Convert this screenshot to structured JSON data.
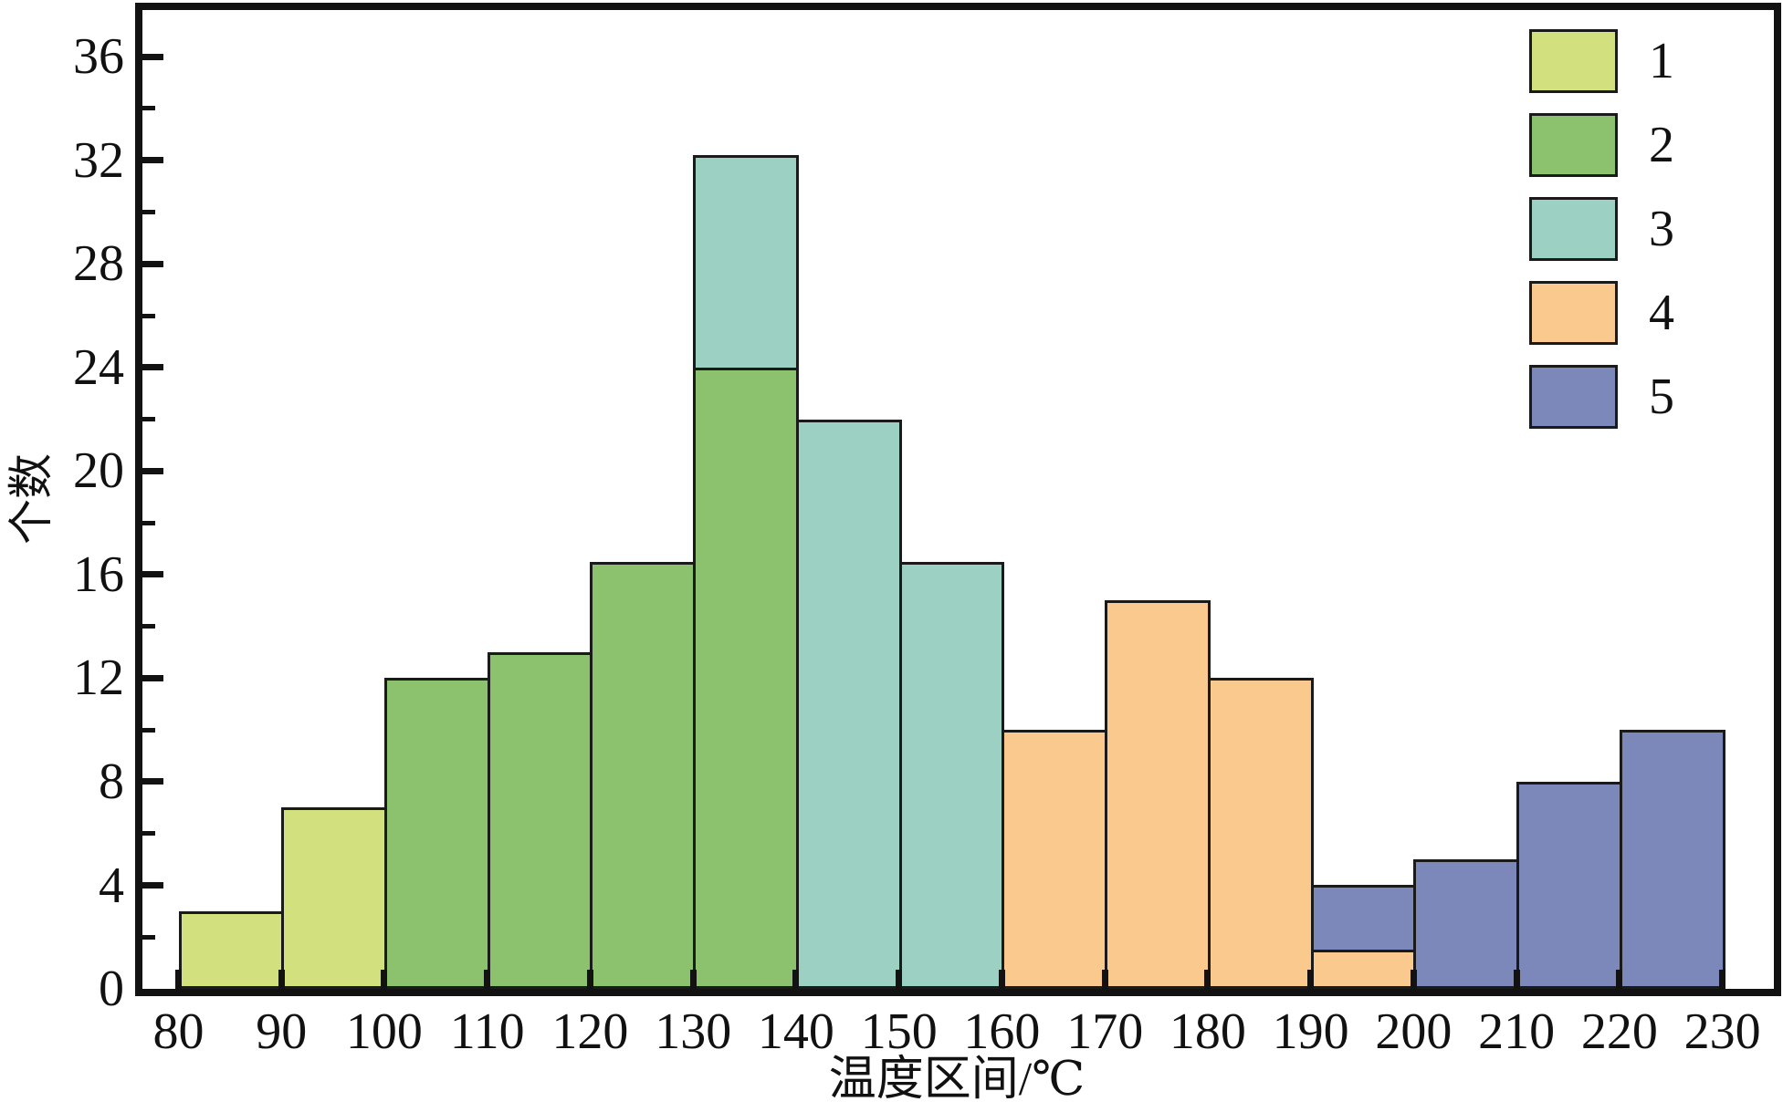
{
  "chart_data": {
    "type": "bar",
    "subtype": "stacked-histogram",
    "title": "",
    "xlabel": "温度区间/℃",
    "ylabel": "个数",
    "xlim": [
      76.5,
      235
    ],
    "ylim": [
      0,
      37.8
    ],
    "grid": false,
    "legend_position": "upper-right-inside",
    "x_major_ticks": [
      80,
      90,
      100,
      110,
      120,
      130,
      140,
      150,
      160,
      170,
      180,
      190,
      200,
      210,
      220,
      230
    ],
    "y_major_ticks": [
      0,
      4,
      8,
      12,
      16,
      20,
      24,
      28,
      32,
      36
    ],
    "y_minor_ticks": [
      2,
      6,
      10,
      14,
      18,
      22,
      26,
      30,
      34
    ],
    "groups": [
      {
        "name": "1",
        "color": "#d3e07e"
      },
      {
        "name": "2",
        "color": "#8cc26d"
      },
      {
        "name": "3",
        "color": "#9bd0c2"
      },
      {
        "name": "4",
        "color": "#f9c98d"
      },
      {
        "name": "5",
        "color": "#7d88ba"
      }
    ],
    "bar_edge_color": "#1a1a1a",
    "bins": [
      {
        "x0": 80,
        "x1": 90,
        "segments": [
          {
            "group": "1",
            "from": 0,
            "to": 3
          }
        ]
      },
      {
        "x0": 90,
        "x1": 100,
        "segments": [
          {
            "group": "1",
            "from": 0,
            "to": 7
          }
        ]
      },
      {
        "x0": 100,
        "x1": 110,
        "segments": [
          {
            "group": "2",
            "from": 0,
            "to": 12
          }
        ]
      },
      {
        "x0": 110,
        "x1": 120,
        "segments": [
          {
            "group": "2",
            "from": 0,
            "to": 13
          }
        ]
      },
      {
        "x0": 120,
        "x1": 130,
        "segments": [
          {
            "group": "2",
            "from": 0,
            "to": 16.5
          }
        ]
      },
      {
        "x0": 130,
        "x1": 140,
        "segments": [
          {
            "group": "2",
            "from": 0,
            "to": 24
          },
          {
            "group": "3",
            "from": 24,
            "to": 32.2
          }
        ]
      },
      {
        "x0": 140,
        "x1": 150,
        "segments": [
          {
            "group": "3",
            "from": 0,
            "to": 22
          }
        ]
      },
      {
        "x0": 150,
        "x1": 160,
        "segments": [
          {
            "group": "3",
            "from": 0,
            "to": 16.5
          }
        ]
      },
      {
        "x0": 160,
        "x1": 170,
        "segments": [
          {
            "group": "4",
            "from": 0,
            "to": 10
          }
        ]
      },
      {
        "x0": 170,
        "x1": 180,
        "segments": [
          {
            "group": "4",
            "from": 0,
            "to": 15
          }
        ]
      },
      {
        "x0": 180,
        "x1": 190,
        "segments": [
          {
            "group": "4",
            "from": 0,
            "to": 12
          }
        ]
      },
      {
        "x0": 190,
        "x1": 200,
        "segments": [
          {
            "group": "4",
            "from": 0,
            "to": 1.5
          },
          {
            "group": "5",
            "from": 1.5,
            "to": 4
          }
        ]
      },
      {
        "x0": 200,
        "x1": 210,
        "segments": [
          {
            "group": "5",
            "from": 0,
            "to": 5
          }
        ]
      },
      {
        "x0": 210,
        "x1": 220,
        "segments": [
          {
            "group": "5",
            "from": 0,
            "to": 8
          }
        ]
      },
      {
        "x0": 220,
        "x1": 230,
        "segments": [
          {
            "group": "5",
            "from": 0,
            "to": 10
          }
        ]
      }
    ],
    "legend": [
      {
        "label": "1"
      },
      {
        "label": "2"
      },
      {
        "label": "3"
      },
      {
        "label": "4"
      },
      {
        "label": "5"
      }
    ]
  }
}
